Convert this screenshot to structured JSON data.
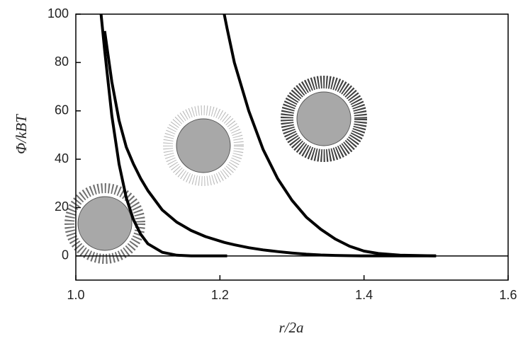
{
  "chart_data": {
    "type": "line",
    "xlabel": "r/2a",
    "ylabel": "Φ/kBT",
    "x": [
      1.035,
      1.04,
      1.05,
      1.06,
      1.07,
      1.08,
      1.09,
      1.1,
      1.12,
      1.14,
      1.16,
      1.18,
      1.206,
      1.21,
      1.22,
      1.24,
      1.26,
      1.28,
      1.3,
      1.32,
      1.34,
      1.36,
      1.38,
      1.4,
      1.42,
      1.45,
      1.5
    ],
    "series": [
      {
        "color": "#000000",
        "values": [
          100,
          85,
          58,
          38,
          24,
          15,
          9,
          5,
          1.5,
          0.3,
          0,
          0,
          0,
          0,
          null,
          null,
          null,
          null,
          null,
          null,
          null,
          null,
          null,
          null,
          null,
          null,
          null
        ]
      },
      {
        "color": "#000000",
        "values": [
          null,
          93,
          72,
          56,
          45,
          38,
          32,
          27,
          19,
          14,
          10.5,
          8,
          5.6,
          5.3,
          4.6,
          3.4,
          2.5,
          1.8,
          1.2,
          0.7,
          0.4,
          0.2,
          0.1,
          0,
          0,
          0,
          0
        ]
      },
      {
        "color": "#000000",
        "values": [
          null,
          null,
          null,
          null,
          null,
          null,
          null,
          null,
          null,
          null,
          null,
          null,
          100,
          94,
          80,
          60,
          44,
          32,
          23,
          16,
          11,
          7,
          4,
          2,
          1,
          0.3,
          0
        ]
      }
    ],
    "xlim": [
      1.0,
      1.6
    ],
    "ylim": [
      -10,
      100
    ],
    "xticks": [
      {
        "value": 1.0,
        "label": "1.0"
      },
      1.2,
      1.4,
      1.6
    ],
    "yticks": [
      0,
      20,
      40,
      60,
      80,
      100
    ]
  }
}
